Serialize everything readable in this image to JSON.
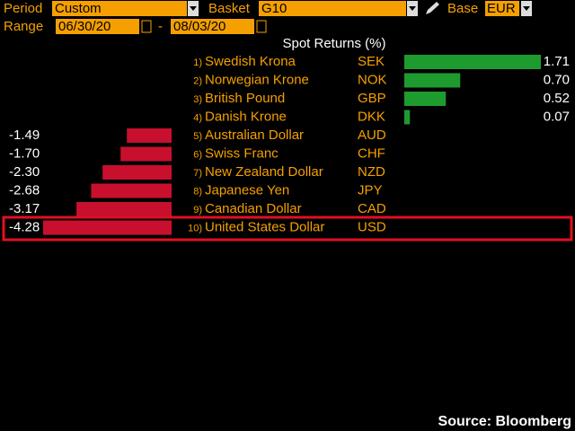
{
  "header": {
    "period_label": "Period",
    "period": "Custom",
    "basket_label": "Basket",
    "basket": "G10",
    "base_label": "Base",
    "base": "EUR",
    "range_label": "Range",
    "start": "06/30/20",
    "separator": "-",
    "end": "08/03/20"
  },
  "chart_data": {
    "type": "bar",
    "title": "Spot Returns (%)",
    "ranks": [
      "1)",
      "2)",
      "3)",
      "4)",
      "5)",
      "6)",
      "7)",
      "8)",
      "9)",
      "10)"
    ],
    "categories": [
      "Swedish Krona",
      "Norwegian Krone",
      "British Pound",
      "Danish Krone",
      "Australian Dollar",
      "Swiss Franc",
      "New Zealand Dollar",
      "Japanese Yen",
      "Canadian Dollar",
      "United States Dollar"
    ],
    "codes": [
      "SEK",
      "NOK",
      "GBP",
      "DKK",
      "AUD",
      "CHF",
      "NZD",
      "JPY",
      "CAD",
      "USD"
    ],
    "values": [
      1.71,
      0.7,
      0.52,
      0.07,
      -1.49,
      -1.7,
      -2.3,
      -2.68,
      -3.17,
      -4.28
    ],
    "value_labels": [
      "1.71",
      "0.70",
      "0.52",
      "0.07",
      "-1.49",
      "-1.70",
      "-2.30",
      "-2.68",
      "-3.17",
      "-4.28"
    ],
    "positive_color": "#1e9b2e",
    "negative_color": "#c8102e"
  },
  "source": "Source: Bloomberg"
}
